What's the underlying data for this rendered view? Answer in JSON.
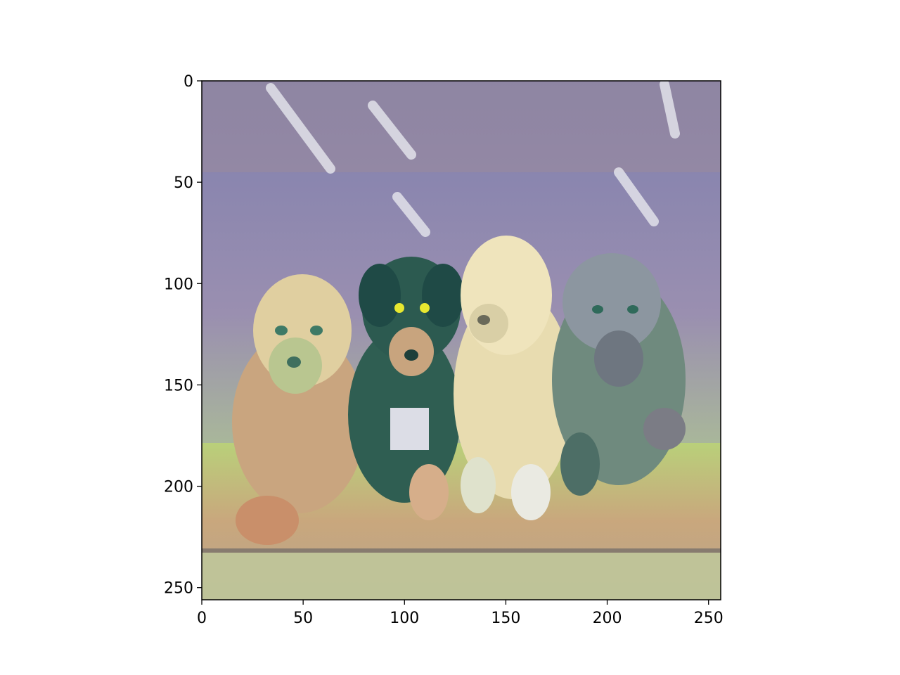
{
  "chart_data": {
    "type": "heatmap",
    "title": "",
    "xlabel": "",
    "ylabel": "",
    "xlim": [
      0,
      256
    ],
    "ylim": [
      256,
      0
    ],
    "grid": false,
    "legend": "none",
    "x_ticks": [
      0,
      50,
      100,
      150,
      200,
      250
    ],
    "y_ticks": [
      0,
      50,
      100,
      150,
      200,
      250
    ],
    "x_tick_labels": [
      "0",
      "50",
      "100",
      "150",
      "200",
      "250"
    ],
    "y_tick_labels": [
      "0",
      "50",
      "100",
      "150",
      "200",
      "250"
    ],
    "image_content": {
      "subject": "four puppies",
      "style_colors": {
        "sky_purple": "#8a86b4",
        "grass_green": "#b5d870",
        "ground_tan": "#c8a27a",
        "dog_cream": "#e8dcb0",
        "dog_dark_green": "#2f5e52",
        "dog_gray": "#8c96a0"
      }
    }
  }
}
